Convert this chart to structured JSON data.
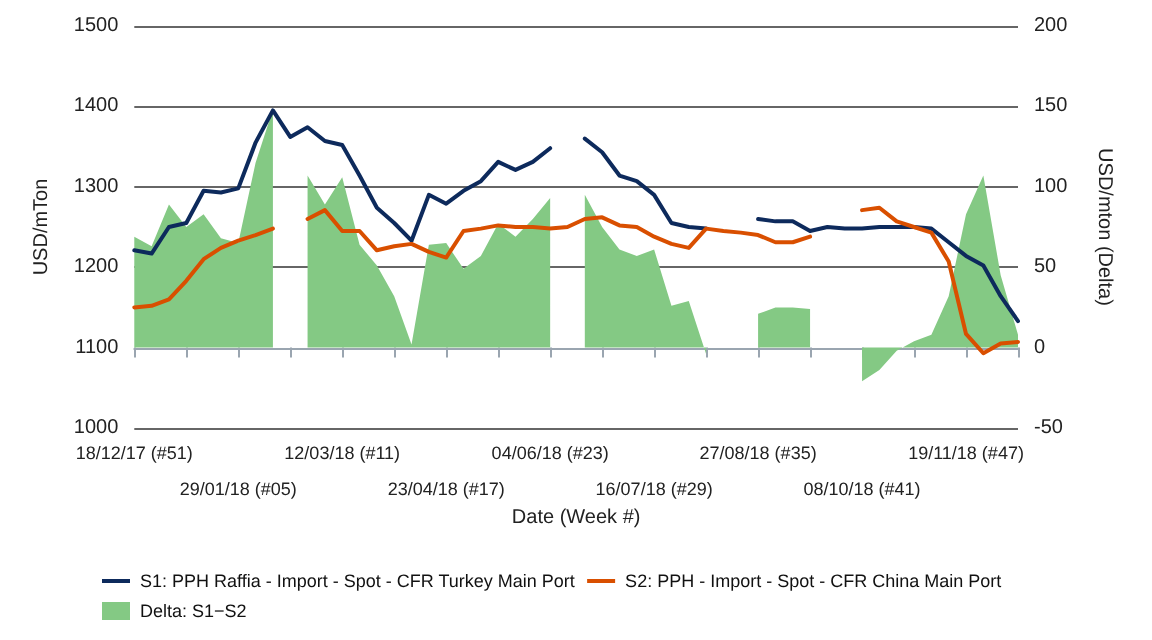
{
  "chart_data": {
    "type": "line",
    "xlabel": "Date (Week #)",
    "ylabel": "USD/mTon",
    "y2label": "USD/mton (Delta)",
    "categories": [
      "18/12/17 (#51)",
      null,
      null,
      null,
      null,
      null,
      "29/01/18 (#05)",
      null,
      null,
      null,
      null,
      null,
      "12/03/18 (#11)",
      null,
      null,
      null,
      null,
      null,
      "23/04/18 (#17)",
      null,
      null,
      null,
      null,
      null,
      "04/06/18 (#23)",
      null,
      null,
      null,
      null,
      null,
      "16/07/18 (#29)",
      null,
      null,
      null,
      null,
      null,
      "27/08/18 (#35)",
      null,
      null,
      null,
      null,
      null,
      "08/10/18 (#41)",
      null,
      null,
      null,
      null,
      null,
      "19/11/18 (#47)",
      null,
      null,
      null
    ],
    "series": [
      {
        "name": "S1: PPH Raffia - Import - Spot - CFR Turkey Main Port",
        "color": "#0d2a5c",
        "values": [
          1221,
          1217,
          1250,
          1255,
          1295,
          1293,
          1298,
          1355,
          1395,
          1362,
          1374,
          1357,
          1352,
          1314,
          1274,
          1255,
          1233,
          1290,
          1279,
          1295,
          1307,
          1331,
          1321,
          1331,
          1348,
          null,
          1360,
          1343,
          1314,
          1307,
          1290,
          1255,
          1250,
          1248,
          null,
          null,
          1260,
          1257,
          1257,
          1245,
          1250,
          1248,
          1248,
          1250,
          1250,
          1250,
          1248,
          1231,
          1214,
          1202,
          1164,
          1133
        ]
      },
      {
        "name": "S2: PPH - Import - Spot - CFR China Main Port",
        "color": "#d94f00",
        "values": [
          1150,
          1152,
          1160,
          1183,
          1210,
          1224,
          1233,
          1240,
          1248,
          null,
          1260,
          1271,
          1245,
          1245,
          1221,
          1226,
          1229,
          1219,
          1212,
          1245,
          1248,
          1252,
          1250,
          1250,
          1248,
          1250,
          1260,
          1262,
          1252,
          1250,
          1238,
          1229,
          1224,
          1248,
          1245,
          1243,
          1240,
          1231,
          1231,
          1238,
          null,
          null,
          1271,
          1274,
          1257,
          1250,
          1243,
          1207,
          1117,
          1093,
          1105,
          1107
        ]
      },
      {
        "name": "Delta: S1−S2",
        "type": "area",
        "axis": "y2",
        "color": "#84c984",
        "values": [
          69,
          63,
          89,
          75,
          83,
          68,
          65,
          115,
          148,
          null,
          107,
          89,
          106,
          64,
          51,
          32,
          2,
          64,
          65,
          49,
          57,
          77,
          69,
          80,
          93,
          null,
          95,
          75,
          61,
          57,
          61,
          26,
          29,
          -4,
          null,
          null,
          21,
          25,
          25,
          24,
          null,
          null,
          -21,
          -14,
          -2,
          4,
          8,
          32,
          83,
          107,
          45,
          8
        ]
      }
    ],
    "ylim": [
      1000,
      1500
    ],
    "yticks": [
      1000,
      1100,
      1200,
      1300,
      1400,
      1500
    ],
    "y2lim": [
      -50,
      200
    ],
    "y2ticks": [
      -50,
      0,
      50,
      100,
      150,
      200
    ],
    "grid": "y",
    "legend": "bottom",
    "marker": "none",
    "line_style": "solid"
  }
}
